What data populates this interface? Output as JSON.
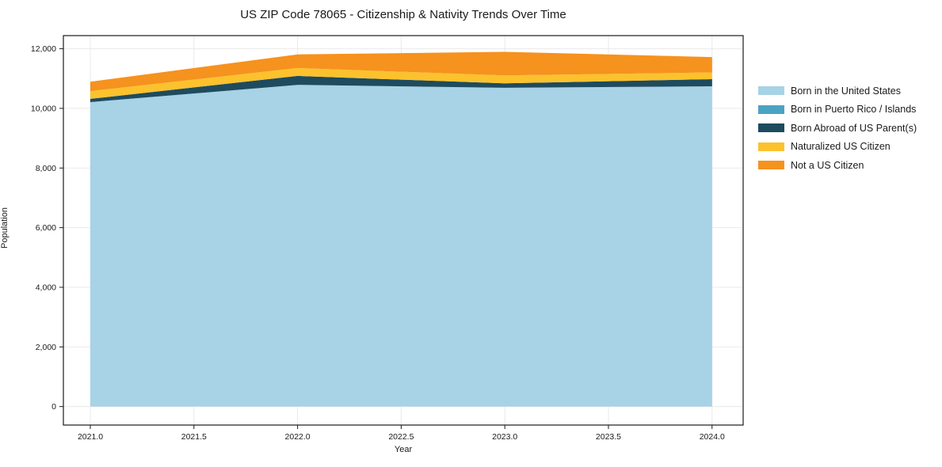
{
  "figure": {
    "title": "US ZIP Code 78065 - Citizenship & Nativity Trends Over Time"
  },
  "chart_data": {
    "type": "area",
    "stacked": true,
    "title": "US ZIP Code 78065 - Citizenship & Nativity Trends Over Time",
    "xlabel": "Year",
    "ylabel": "Population",
    "x": [
      2021,
      2022,
      2023,
      2024
    ],
    "series": [
      {
        "name": "Born in the United States",
        "color": "#a8d2e6",
        "values": [
          10210,
          10790,
          10690,
          10740
        ]
      },
      {
        "name": "Born in Puerto Rico / Islands",
        "color": "#4ba3c3",
        "values": [
          0,
          0,
          0,
          0
        ]
      },
      {
        "name": "Born Abroad of US Parent(s)",
        "color": "#1f4b5e",
        "values": [
          110,
          300,
          150,
          240
        ]
      },
      {
        "name": "Naturalized US Citizen",
        "color": "#fcc22d",
        "values": [
          260,
          265,
          265,
          225
        ]
      },
      {
        "name": "Not a US Citizen",
        "color": "#f6921e",
        "values": [
          315,
          455,
          790,
          515
        ]
      }
    ],
    "x_ticks": [
      2021.0,
      2021.5,
      2022.0,
      2022.5,
      2023.0,
      2023.5,
      2024.0
    ],
    "x_tick_labels": [
      "2021.0",
      "2021.5",
      "2022.0",
      "2022.5",
      "2023.0",
      "2023.5",
      "2024.0"
    ],
    "y_ticks": [
      0,
      2000,
      4000,
      6000,
      8000,
      10000,
      12000
    ],
    "y_tick_labels": [
      "0",
      "2,000",
      "4,000",
      "6,000",
      "8,000",
      "10,000",
      "12,000"
    ],
    "xlim": [
      2020.87,
      2024.15
    ],
    "ylim": [
      -620,
      12440
    ],
    "grid": true,
    "grid_color": "#e9e9e9",
    "spine_color": "#1a1a1a",
    "legend_position": "right"
  }
}
